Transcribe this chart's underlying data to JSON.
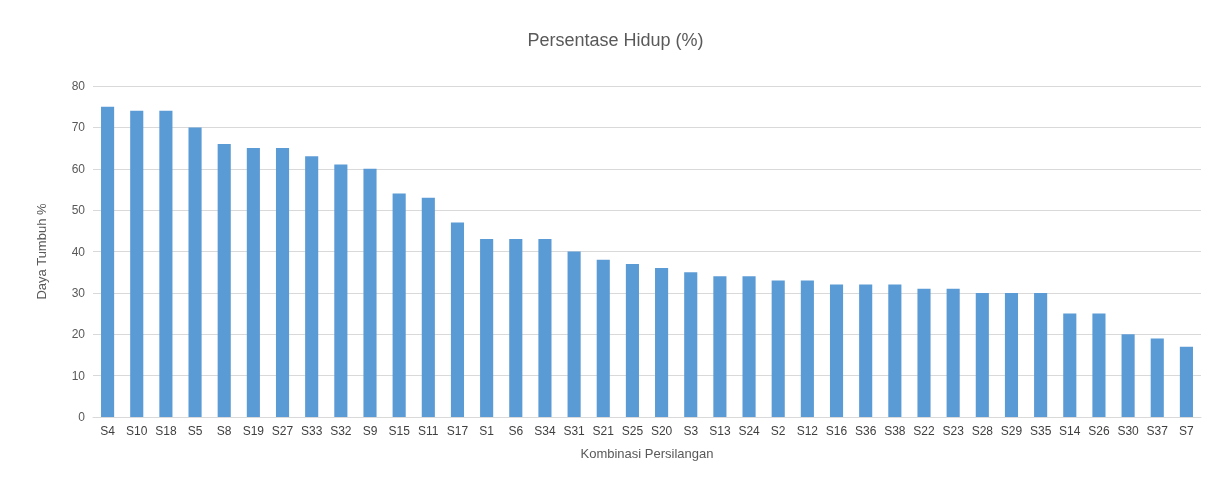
{
  "chart_data": {
    "type": "bar",
    "title": "Persentase Hidup (%)",
    "xlabel": "Kombinasi Persilangan",
    "ylabel": "Daya Tumbuh %",
    "categories": [
      "S4",
      "S10",
      "S18",
      "S5",
      "S8",
      "S19",
      "S27",
      "S33",
      "S32",
      "S9",
      "S15",
      "S11",
      "S17",
      "S1",
      "S6",
      "S34",
      "S31",
      "S21",
      "S25",
      "S20",
      "S3",
      "S13",
      "S24",
      "S2",
      "S12",
      "S16",
      "S36",
      "S38",
      "S22",
      "S23",
      "S28",
      "S29",
      "S35",
      "S14",
      "S26",
      "S30",
      "S37",
      "S7"
    ],
    "values": [
      75,
      74,
      74,
      70,
      66,
      65,
      65,
      63,
      61,
      60,
      54,
      53,
      47,
      43,
      43,
      43,
      40,
      38,
      37,
      36,
      35,
      34,
      34,
      33,
      33,
      32,
      32,
      32,
      31,
      31,
      30,
      30,
      30,
      25,
      25,
      20,
      19,
      17
    ],
    "color": "#5b9bd5",
    "ylim": [
      0,
      80
    ],
    "yticks": [
      0,
      10,
      20,
      30,
      40,
      50,
      60,
      70,
      80
    ],
    "grid": "y"
  }
}
